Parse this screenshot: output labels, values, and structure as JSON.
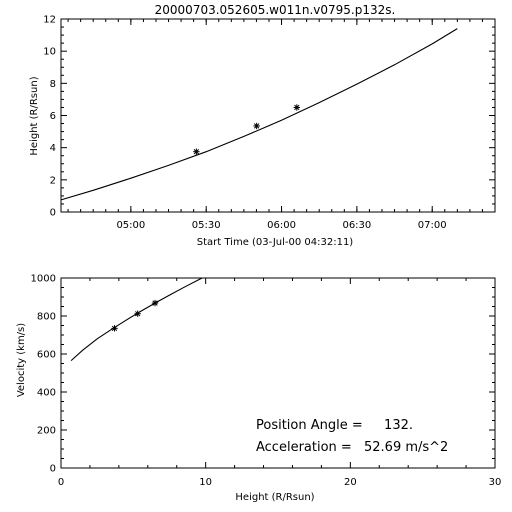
{
  "chart_data": [
    {
      "type": "line",
      "title": "20000703.052605.w011n.v0795.p132s.",
      "xlabel": "Start Time (03-Jul-00 04:32:11)",
      "ylabel": "Height (R/Rsun)",
      "x_is_time": true,
      "xlim": [
        "04:32:11",
        "07:25:00"
      ],
      "ylim": [
        0,
        12
      ],
      "xticks": [
        "05:00",
        "05:30",
        "06:00",
        "06:30",
        "07:00"
      ],
      "yticks": [
        0,
        2,
        4,
        6,
        8,
        10,
        12
      ],
      "grid": false,
      "series": [
        {
          "style": "line",
          "x": [
            "04:32:11",
            "04:45",
            "05:00",
            "05:15",
            "05:30",
            "05:45",
            "06:00",
            "06:15",
            "06:30",
            "06:45",
            "07:00",
            "07:10"
          ],
          "y": [
            0.75,
            1.35,
            2.1,
            2.9,
            3.75,
            4.7,
            5.7,
            6.8,
            7.95,
            9.15,
            10.45,
            11.4
          ]
        },
        {
          "style": "markers",
          "marker": "asterisk",
          "x": [
            "05:26:05",
            "05:50:05",
            "06:06:05"
          ],
          "y": [
            3.75,
            5.35,
            6.5
          ]
        }
      ]
    },
    {
      "type": "line",
      "xlabel": "Height (R/Rsun)",
      "ylabel": "Velocity (km/s)",
      "xlim": [
        0,
        30
      ],
      "ylim": [
        0,
        1000
      ],
      "xticks": [
        0,
        10,
        20,
        30
      ],
      "yticks": [
        0,
        200,
        400,
        600,
        800,
        1000
      ],
      "grid": false,
      "series": [
        {
          "style": "line",
          "x": [
            0.7,
            1.5,
            2.5,
            3.5,
            4.5,
            5.5,
            6.5,
            7.5,
            8.5,
            9.5,
            10.0
          ],
          "y": [
            565,
            620,
            680,
            730,
            778,
            824,
            868,
            910,
            951,
            990,
            1010
          ]
        },
        {
          "style": "markers",
          "marker": "asterisk",
          "x": [
            3.7,
            5.3,
            6.5
          ],
          "y": [
            735,
            812,
            868
          ]
        }
      ],
      "annotations": [
        {
          "label": "Position Angle =",
          "value": "132."
        },
        {
          "label": "Acceleration =",
          "value": "52.69 m/s^2"
        }
      ]
    }
  ]
}
